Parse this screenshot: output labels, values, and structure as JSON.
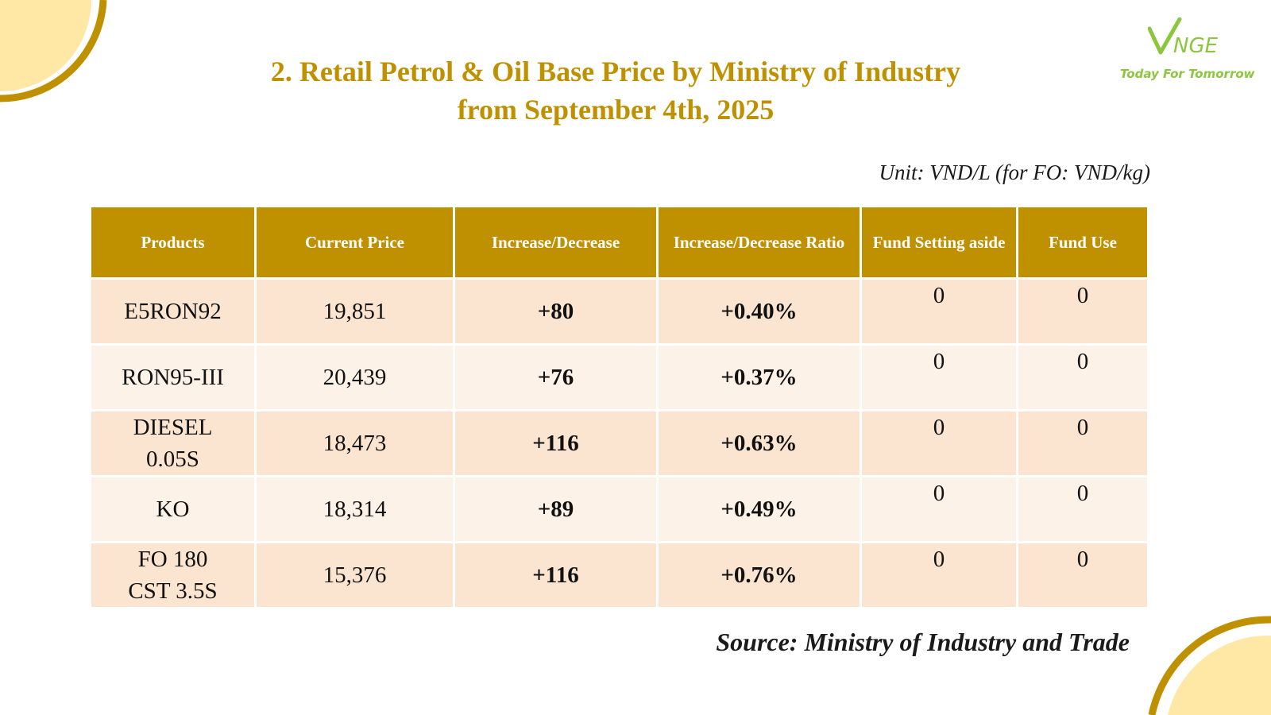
{
  "header": {
    "title_line1": "2. Retail Petrol & Oil Base Price by Ministry of Industry",
    "title_line2": "from September 4th, 2025"
  },
  "logo": {
    "mark": "VNGE",
    "tagline": "Today For Tomorrow"
  },
  "unit_note": "Unit: VND/L (for FO: VND/kg)",
  "table": {
    "columns": [
      "Products",
      "Current Price",
      "Increase/Decrease",
      "Increase/Decrease Ratio",
      "Fund Setting aside",
      "Fund Use"
    ],
    "rows": [
      {
        "product": "E5RON92",
        "price": "19,851",
        "change": "+80",
        "ratio": "+0.40%",
        "fund_setting": "0",
        "fund_use": "0"
      },
      {
        "product": "RON95-III",
        "price": "20,439",
        "change": "+76",
        "ratio": "+0.37%",
        "fund_setting": "0",
        "fund_use": "0"
      },
      {
        "product": "DIESEL 0.05S",
        "price": "18,473",
        "change": "+116",
        "ratio": "+0.63%",
        "fund_setting": "0",
        "fund_use": "0"
      },
      {
        "product": "KO",
        "price": "18,314",
        "change": "+89",
        "ratio": "+0.49%",
        "fund_setting": "0",
        "fund_use": "0"
      },
      {
        "product": "FO 180 CST 3.5S",
        "price": "15,376",
        "change": "+116",
        "ratio": "+0.76%",
        "fund_setting": "0",
        "fund_use": "0"
      }
    ]
  },
  "source": "Source: Ministry of Industry and Trade",
  "colors": {
    "accent_gold": "#bf9000",
    "positive_green": "#00a651",
    "row_dark": "#fbe5d0",
    "row_light": "#fdf2e7",
    "logo_green": "#8cc63f"
  }
}
